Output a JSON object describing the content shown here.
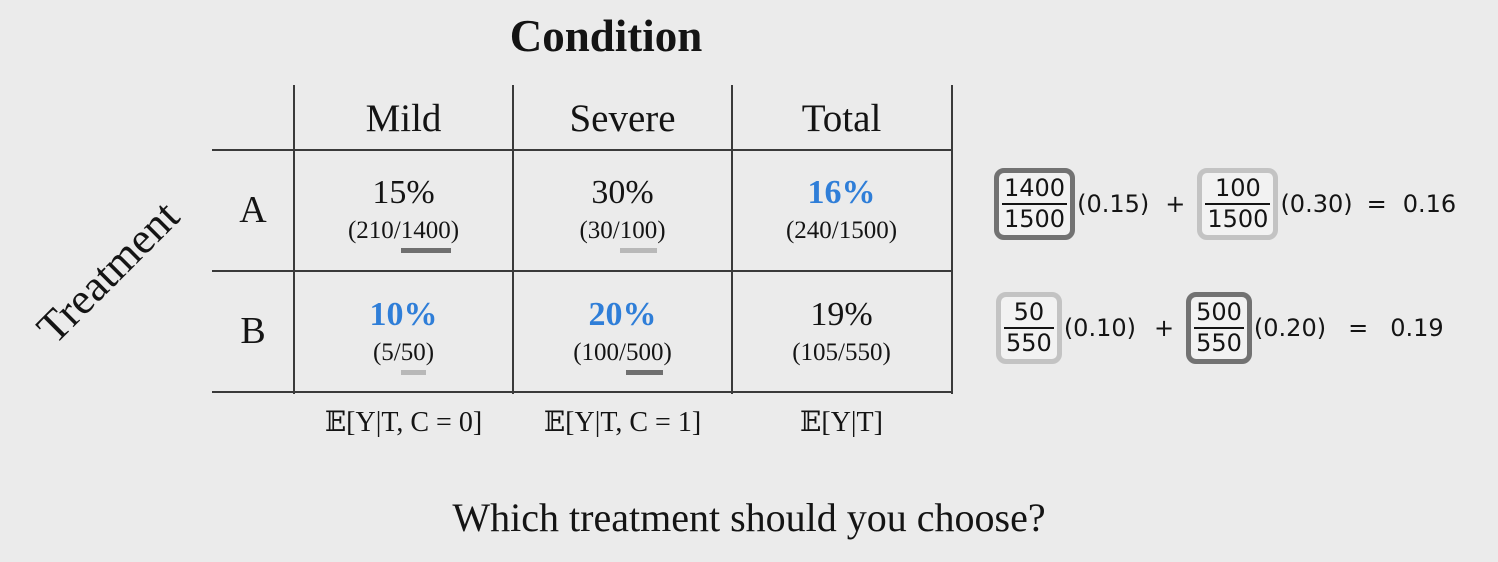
{
  "title": "Condition",
  "row_title": "Treatment",
  "columns": [
    "Mild",
    "Severe",
    "Total"
  ],
  "rows": [
    {
      "label": "A",
      "cells": [
        {
          "pct": "15%",
          "num": "210",
          "den": "1400",
          "den_underline": "dark",
          "highlight": false
        },
        {
          "pct": "30%",
          "num": "30",
          "den": "100",
          "den_underline": "light",
          "highlight": false
        },
        {
          "pct": "16%",
          "num": "240",
          "den": "1500",
          "den_underline": "none",
          "highlight": true
        }
      ]
    },
    {
      "label": "B",
      "cells": [
        {
          "pct": "10%",
          "num": "5",
          "den": "50",
          "den_underline": "light",
          "highlight": true
        },
        {
          "pct": "20%",
          "num": "100",
          "den": "500",
          "den_underline": "dark",
          "highlight": true
        },
        {
          "pct": "19%",
          "num": "105",
          "den": "550",
          "den_underline": "none",
          "highlight": false
        }
      ]
    }
  ],
  "expectations": [
    "𝔼[Y|T, C = 0]",
    "𝔼[Y|T, C = 1]",
    "𝔼[Y|T]"
  ],
  "equations": [
    {
      "f1": {
        "num": "1400",
        "den": "1500",
        "box": "dark"
      },
      "m1": "(0.15)",
      "plus": "+",
      "f2": {
        "num": "100",
        "den": "1500",
        "box": "light"
      },
      "m2": "(0.30)",
      "eq": "=",
      "result": "0.16"
    },
    {
      "f1": {
        "num": "50",
        "den": "550",
        "box": "light"
      },
      "m1": "(0.10)",
      "plus": "+",
      "f2": {
        "num": "500",
        "den": "550",
        "box": "dark"
      },
      "m2": "(0.20)",
      "eq": "=",
      "result": "0.19"
    }
  ],
  "question": "Which treatment should you choose?",
  "colors": {
    "highlight": "#2f7ed8",
    "box_dark": "#727272",
    "box_light": "#c3c3c3"
  }
}
